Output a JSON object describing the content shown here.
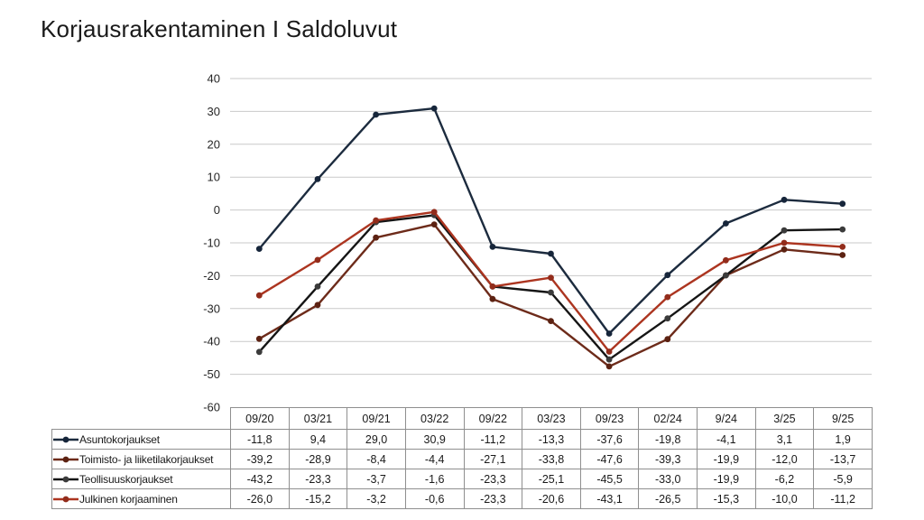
{
  "title": "Korjausrakentaminen I Saldoluvut",
  "colors": {
    "background": "#FFFFFF",
    "title_text": "#1A1A1A",
    "axis_text": "#262626",
    "gridline": "#C9C9C9",
    "table_border": "#8F8F8F",
    "table_text": "#1A1A1A"
  },
  "chart_data": {
    "type": "line",
    "title": "Korjausrakentaminen I Saldoluvut",
    "categories": [
      "09/20",
      "03/21",
      "09/21",
      "03/22",
      "09/22",
      "03/23",
      "09/23",
      "02/24",
      "9/24",
      "3/25",
      "9/25"
    ],
    "series": [
      {
        "name": "Asuntokorjaukset",
        "color": "#1C2B3E",
        "marker_color": "#16253A",
        "values": [
          -11.8,
          9.4,
          29.0,
          30.9,
          -11.2,
          -13.3,
          -37.6,
          -19.8,
          -4.1,
          3.1,
          1.9
        ]
      },
      {
        "name": "Toimisto- ja liiketilakorjaukset",
        "color": "#6D2B1A",
        "marker_color": "#5C2212",
        "values": [
          -39.2,
          -28.9,
          -8.4,
          -4.4,
          -27.1,
          -33.8,
          -47.6,
          -39.3,
          -19.9,
          -12.0,
          -13.7
        ]
      },
      {
        "name": "Teollisuuskorjaukset",
        "color": "#151515",
        "marker_color": "#3B3B3B",
        "values": [
          -43.2,
          -23.3,
          -3.7,
          -1.6,
          -23.3,
          -25.1,
          -45.5,
          -33.0,
          -19.9,
          -6.2,
          -5.9
        ]
      },
      {
        "name": "Julkinen korjaaminen",
        "color": "#AC3520",
        "marker_color": "#922C1B",
        "values": [
          -26.0,
          -15.2,
          -3.2,
          -0.6,
          -23.3,
          -20.6,
          -43.1,
          -26.5,
          -15.3,
          -10.0,
          -11.2
        ]
      }
    ],
    "ylim": [
      -60,
      40
    ],
    "ytick_step": 10,
    "ytick_labels": [
      "40",
      "30",
      "20",
      "10",
      "0",
      "-10",
      "-20",
      "-30",
      "-40",
      "-50",
      "-60"
    ],
    "xlabel": "",
    "ylabel": "",
    "grid": true,
    "legend_position": "table-left-column",
    "decimal_separator": ","
  }
}
